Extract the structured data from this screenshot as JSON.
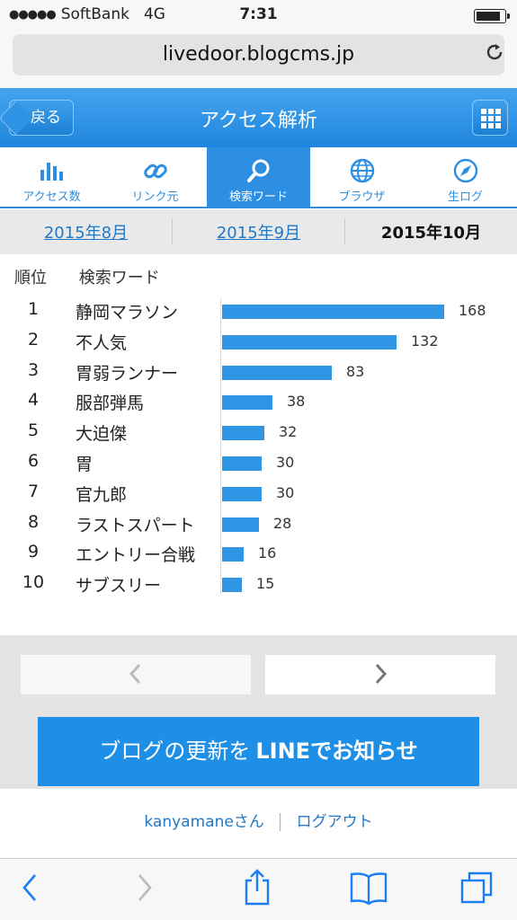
{
  "status_bar": {
    "signal": "●●●●●",
    "carrier": "SoftBank",
    "network": "4G",
    "time": "7:31",
    "battery_level": 0.85
  },
  "browser": {
    "url": "livedoor.blogcms.jp",
    "reload_icon": "reload-icon"
  },
  "header": {
    "back_label": "戻る",
    "title": "アクセス解析",
    "menu_icon": "grid-icon"
  },
  "tabs": [
    {
      "label": "アクセス数",
      "icon": "bar-chart-icon",
      "active": false
    },
    {
      "label": "リンク元",
      "icon": "link-icon",
      "active": false
    },
    {
      "label": "検索ワード",
      "icon": "search-icon",
      "active": true
    },
    {
      "label": "ブラウザ",
      "icon": "globe-icon",
      "active": false
    },
    {
      "label": "生ログ",
      "icon": "compass-icon",
      "active": false
    }
  ],
  "months": [
    {
      "label": "2015年8月",
      "current": false
    },
    {
      "label": "2015年9月",
      "current": false
    },
    {
      "label": "2015年10月",
      "current": true
    }
  ],
  "ranking": {
    "col_rank": "順位",
    "col_word": "検索ワード",
    "rows": [
      {
        "rank": "1",
        "word": "静岡マラソン",
        "count": 168
      },
      {
        "rank": "2",
        "word": "不人気",
        "count": 132
      },
      {
        "rank": "3",
        "word": "胃弱ランナー",
        "count": 83
      },
      {
        "rank": "4",
        "word": "服部弾馬",
        "count": 38
      },
      {
        "rank": "5",
        "word": "大迫傑",
        "count": 32
      },
      {
        "rank": "6",
        "word": "胃",
        "count": 30
      },
      {
        "rank": "7",
        "word": "官九郎",
        "count": 30
      },
      {
        "rank": "8",
        "word": "ラストスパート",
        "count": 28
      },
      {
        "rank": "9",
        "word": "エントリー合戦",
        "count": 16
      },
      {
        "rank": "10",
        "word": "サブスリー",
        "count": 15
      }
    ]
  },
  "pager": {
    "prev": "‹",
    "next": "›"
  },
  "line_banner": {
    "prefix": "ブログの更新を",
    "bold": "LINEでお知らせ"
  },
  "footer": {
    "user": "kanyamaneさん",
    "logout": "ログアウト"
  },
  "colors": {
    "accent": "#2c8fe2",
    "bar": "#2f96e6",
    "link": "#1f78c8"
  }
}
